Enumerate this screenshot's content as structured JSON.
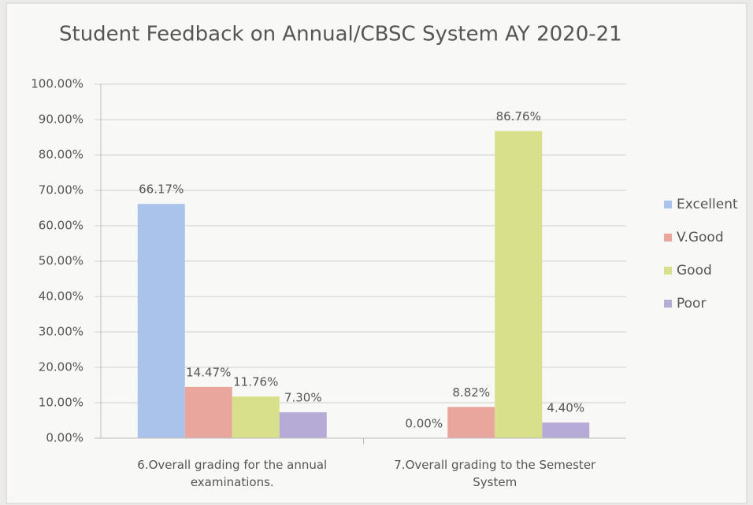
{
  "chart_data": {
    "type": "bar",
    "title": "Student Feedback on Annual/CBSC System AY 2020-21",
    "categories": [
      "6.Overall grading for the annual examinations.",
      "7.Overall grading to the Semester System"
    ],
    "series": [
      {
        "name": "Excellent",
        "color": "#a9c3ea",
        "values": [
          66.17,
          0.0
        ],
        "value_labels": [
          "66.17%",
          "0.00%"
        ]
      },
      {
        "name": "V.Good",
        "color": "#e9a69c",
        "values": [
          14.47,
          8.82
        ],
        "value_labels": [
          "14.47%",
          "8.82%"
        ]
      },
      {
        "name": "Good",
        "color": "#d9e08c",
        "values": [
          11.76,
          86.76
        ],
        "value_labels": [
          "11.76%",
          "86.76%"
        ]
      },
      {
        "name": "Poor",
        "color": "#b6abd6",
        "values": [
          7.3,
          4.4
        ],
        "value_labels": [
          "7.30%",
          "4.40%"
        ]
      }
    ],
    "ylim": [
      0,
      100
    ],
    "yticks": [
      {
        "value": 0,
        "label": "0.00%"
      },
      {
        "value": 10,
        "label": "10.00%"
      },
      {
        "value": 20,
        "label": "20.00%"
      },
      {
        "value": 30,
        "label": "30.00%"
      },
      {
        "value": 40,
        "label": "40.00%"
      },
      {
        "value": 50,
        "label": "50.00%"
      },
      {
        "value": 60,
        "label": "60.00%"
      },
      {
        "value": 70,
        "label": "70.00%"
      },
      {
        "value": 80,
        "label": "80.00%"
      },
      {
        "value": 90,
        "label": "90.00%"
      },
      {
        "value": 100,
        "label": "100.00%"
      }
    ],
    "grid": true,
    "legend": "right"
  }
}
